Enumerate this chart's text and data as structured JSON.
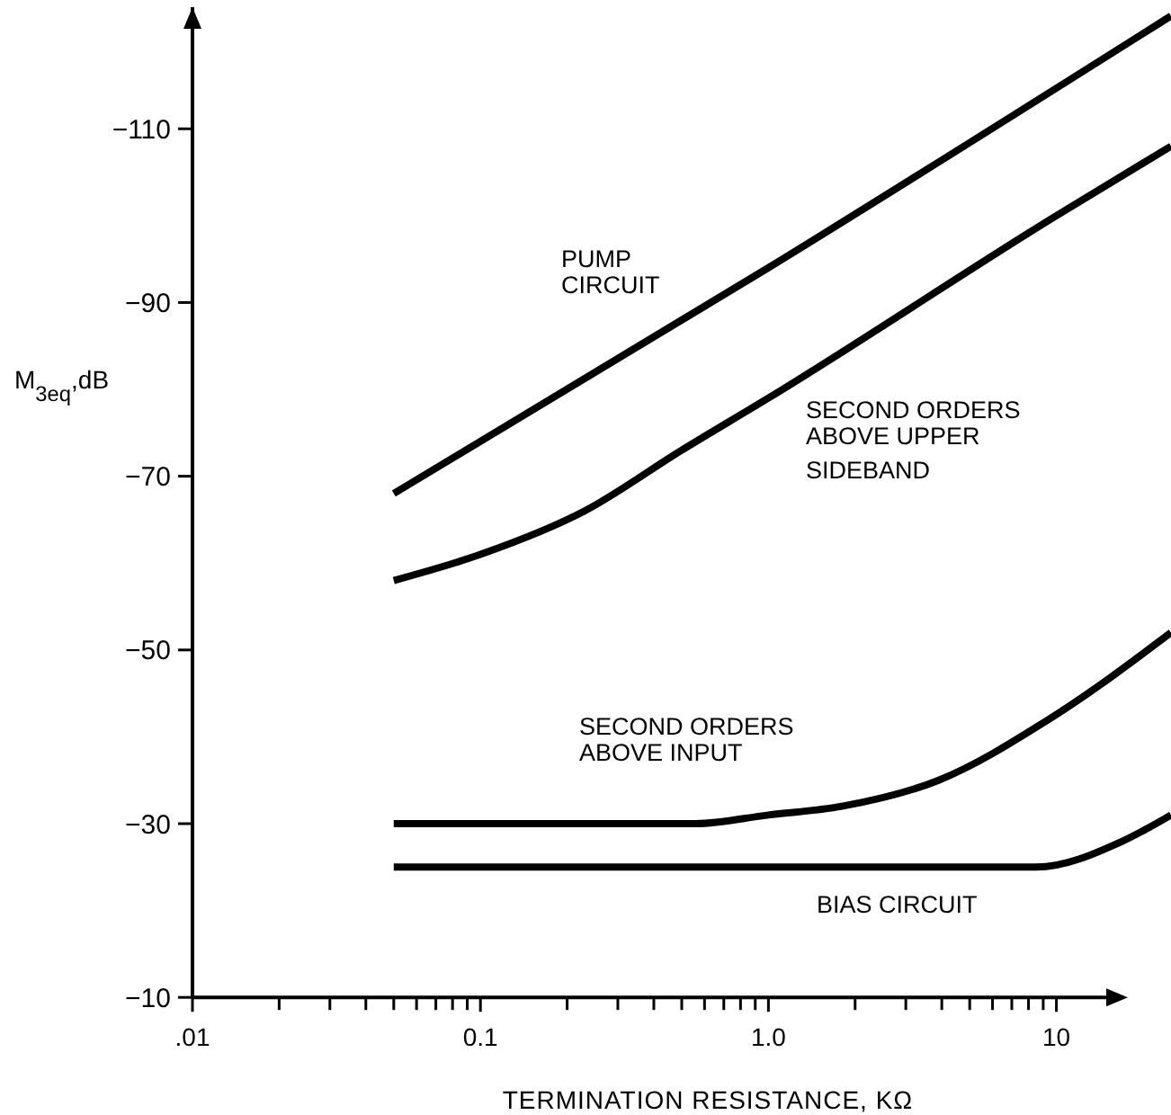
{
  "chart_data": {
    "type": "line",
    "xlabel": "TERMINATION  RESISTANCE, KΩ",
    "ylabel": "M$_{3eq}$,dB",
    "log": "x",
    "xlim": [
      0.01,
      25
    ],
    "ylim": [
      -10,
      -124
    ],
    "xticks": [
      {
        "value": 0.01,
        "label": ".01"
      },
      {
        "value": 0.02,
        "label": null
      },
      {
        "value": 0.03,
        "label": null
      },
      {
        "value": 0.04,
        "label": null
      },
      {
        "value": 0.05,
        "label": null
      },
      {
        "value": 0.06,
        "label": null
      },
      {
        "value": 0.07,
        "label": null
      },
      {
        "value": 0.08,
        "label": null
      },
      {
        "value": 0.09,
        "label": null
      },
      {
        "value": 0.1,
        "label": "0.1"
      },
      {
        "value": 0.2,
        "label": null
      },
      {
        "value": 0.3,
        "label": null
      },
      {
        "value": 0.4,
        "label": null
      },
      {
        "value": 0.5,
        "label": null
      },
      {
        "value": 0.6,
        "label": null
      },
      {
        "value": 0.7,
        "label": null
      },
      {
        "value": 0.8,
        "label": null
      },
      {
        "value": 0.9,
        "label": null
      },
      {
        "value": 1,
        "label": "1.0"
      },
      {
        "value": 2,
        "label": null
      },
      {
        "value": 3,
        "label": null
      },
      {
        "value": 4,
        "label": null
      },
      {
        "value": 5,
        "label": null
      },
      {
        "value": 6,
        "label": null
      },
      {
        "value": 7,
        "label": null
      },
      {
        "value": 8,
        "label": null
      },
      {
        "value": 9,
        "label": null
      },
      10
    ],
    "yticks": [
      -10,
      -30,
      -50,
      -70,
      -90,
      -110
    ],
    "series": [
      {
        "name": "PUMP\nCIRCUIT",
        "color": "#000000",
        "x": [
          0.05,
          1,
          25
        ],
        "values": [
          -68,
          -94,
          -123
        ]
      },
      {
        "name": "SECOND  ORDERS\nABOVE  UPPER\nSIDEBAND",
        "color": "#000000",
        "x": [
          0.05,
          0.1,
          0.23,
          0.5,
          1,
          10,
          25
        ],
        "values": [
          -58,
          -61,
          -66,
          -73,
          -79,
          -100,
          -108
        ]
      },
      {
        "name": "SECOND  ORDERS\nABOVE  INPUT",
        "color": "#000000",
        "x": [
          0.05,
          0.2,
          0.56,
          1,
          1.8,
          3.9,
          9.4,
          25
        ],
        "values": [
          -30,
          -30,
          -30,
          -31,
          -32,
          -35,
          -42,
          -52
        ]
      },
      {
        "name": "BIAS  CIRCUIT",
        "color": "#000000",
        "x": [
          0.05,
          1,
          8.5,
          17,
          25
        ],
        "values": [
          -25,
          -25,
          -25,
          -28,
          -31
        ]
      }
    ]
  }
}
